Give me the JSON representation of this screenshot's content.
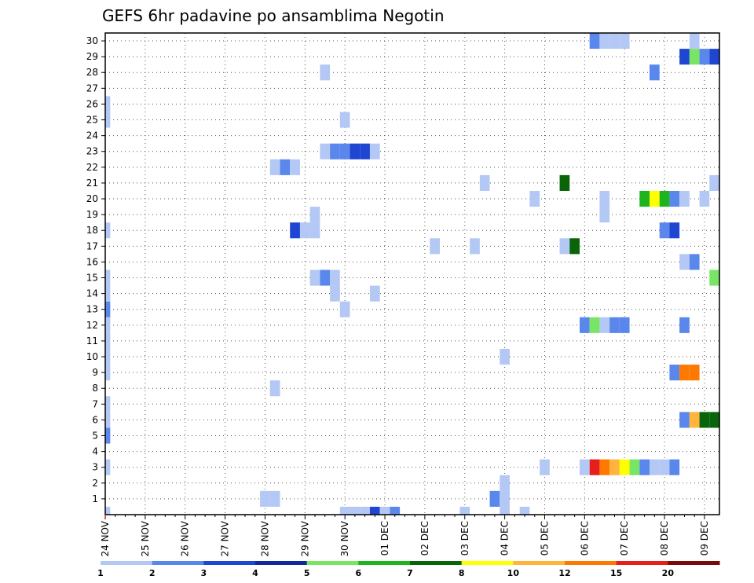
{
  "chart_data": {
    "type": "heatmap",
    "title": "GEFS 6hr padavine po ansamblima Negotin",
    "y_categories": [
      "1",
      "2",
      "3",
      "4",
      "5",
      "6",
      "7",
      "8",
      "9",
      "10",
      "11",
      "12",
      "13",
      "14",
      "15",
      "16",
      "17",
      "18",
      "19",
      "20",
      "21",
      "22",
      "23",
      "24",
      "25",
      "26",
      "27",
      "28",
      "29",
      "30"
    ],
    "x_tick_labels": [
      "24 NOV",
      "25 NOV",
      "26 NOV",
      "27 NOV",
      "28 NOV",
      "29 NOV",
      "30 NOV",
      "01 DEC",
      "02 DEC",
      "03 DEC",
      "04 DEC",
      "05 DEC",
      "06 DEC",
      "07 DEC",
      "08 DEC",
      "09 DEC"
    ],
    "x_steps_per_day": 4,
    "grid": true,
    "colorbar": {
      "boundaries": [
        "1",
        "2",
        "3",
        "4",
        "5",
        "6",
        "7",
        "8",
        "10",
        "12",
        "15",
        "20"
      ],
      "colors": [
        "#b4c8f5",
        "#5a87eb",
        "#1e46d2",
        "#0f28a0",
        "#78e664",
        "#1eb41e",
        "#0a640a",
        "#ffff00",
        "#ffb43c",
        "#ff7800",
        "#e61e1e",
        "#780a0a"
      ]
    },
    "cells": [
      {
        "t": 0,
        "m": 0,
        "c": 0
      },
      {
        "t": 0,
        "m": 3,
        "c": 0
      },
      {
        "t": 0,
        "m": 5,
        "c": 1
      },
      {
        "t": 0,
        "m": 6,
        "c": 0
      },
      {
        "t": 0,
        "m": 7,
        "c": 0
      },
      {
        "t": 0,
        "m": 9,
        "c": 0
      },
      {
        "t": 0,
        "m": 10,
        "c": 0
      },
      {
        "t": 0,
        "m": 11,
        "c": 0
      },
      {
        "t": 0,
        "m": 12,
        "c": 0
      },
      {
        "t": 0,
        "m": 13,
        "c": 1
      },
      {
        "t": 0,
        "m": 14,
        "c": 0
      },
      {
        "t": 0,
        "m": 15,
        "c": 0
      },
      {
        "t": 0,
        "m": 18,
        "c": 0
      },
      {
        "t": 0,
        "m": 25,
        "c": 0
      },
      {
        "t": 0,
        "m": 26,
        "c": 0
      },
      {
        "t": 16,
        "m": 1,
        "c": 0
      },
      {
        "t": 17,
        "m": 1,
        "c": 0
      },
      {
        "t": 17,
        "m": 8,
        "c": 0
      },
      {
        "t": 17,
        "m": 22,
        "c": 0
      },
      {
        "t": 18,
        "m": 22,
        "c": 1
      },
      {
        "t": 19,
        "m": 22,
        "c": 0
      },
      {
        "t": 19,
        "m": 18,
        "c": 2
      },
      {
        "t": 20,
        "m": 18,
        "c": 0
      },
      {
        "t": 21,
        "m": 18,
        "c": 0
      },
      {
        "t": 21,
        "m": 19,
        "c": 0
      },
      {
        "t": 21,
        "m": 15,
        "c": 0
      },
      {
        "t": 22,
        "m": 15,
        "c": 1
      },
      {
        "t": 23,
        "m": 15,
        "c": 0
      },
      {
        "t": 23,
        "m": 14,
        "c": 0
      },
      {
        "t": 22,
        "m": 23,
        "c": 0
      },
      {
        "t": 22,
        "m": 28,
        "c": 0
      },
      {
        "t": 23,
        "m": 23,
        "c": 1
      },
      {
        "t": 24,
        "m": 23,
        "c": 1
      },
      {
        "t": 25,
        "m": 23,
        "c": 2
      },
      {
        "t": 26,
        "m": 23,
        "c": 2
      },
      {
        "t": 27,
        "m": 23,
        "c": 0
      },
      {
        "t": 24,
        "m": 25,
        "c": 0
      },
      {
        "t": 24,
        "m": 13,
        "c": 0
      },
      {
        "t": 24,
        "m": 0,
        "c": 0
      },
      {
        "t": 25,
        "m": 0,
        "c": 0
      },
      {
        "t": 26,
        "m": 0,
        "c": 0
      },
      {
        "t": 27,
        "m": 0,
        "c": 2
      },
      {
        "t": 27,
        "m": 14,
        "c": 0
      },
      {
        "t": 28,
        "m": 0,
        "c": 0
      },
      {
        "t": 29,
        "m": 0,
        "c": 1
      },
      {
        "t": 33,
        "m": 17,
        "c": 0
      },
      {
        "t": 37,
        "m": 17,
        "c": 0
      },
      {
        "t": 36,
        "m": 0,
        "c": 0
      },
      {
        "t": 38,
        "m": 21,
        "c": 0
      },
      {
        "t": 39,
        "m": 1,
        "c": 1
      },
      {
        "t": 40,
        "m": 0,
        "c": 0
      },
      {
        "t": 40,
        "m": 1,
        "c": 0
      },
      {
        "t": 40,
        "m": 2,
        "c": 0
      },
      {
        "t": 40,
        "m": 10,
        "c": 0
      },
      {
        "t": 42,
        "m": 0,
        "c": 0
      },
      {
        "t": 43,
        "m": 20,
        "c": 0
      },
      {
        "t": 44,
        "m": 3,
        "c": 0
      },
      {
        "t": 46,
        "m": 17,
        "c": 0
      },
      {
        "t": 46,
        "m": 21,
        "c": 6
      },
      {
        "t": 47,
        "m": 17,
        "c": 6
      },
      {
        "t": 48,
        "m": 3,
        "c": 0
      },
      {
        "t": 48,
        "m": 12,
        "c": 1
      },
      {
        "t": 49,
        "m": 3,
        "c": 10
      },
      {
        "t": 50,
        "m": 3,
        "c": 9
      },
      {
        "t": 51,
        "m": 3,
        "c": 8
      },
      {
        "t": 52,
        "m": 3,
        "c": 7
      },
      {
        "t": 53,
        "m": 3,
        "c": 4
      },
      {
        "t": 54,
        "m": 3,
        "c": 1
      },
      {
        "t": 55,
        "m": 3,
        "c": 0
      },
      {
        "t": 56,
        "m": 3,
        "c": 0
      },
      {
        "t": 57,
        "m": 3,
        "c": 1
      },
      {
        "t": 49,
        "m": 12,
        "c": 4
      },
      {
        "t": 50,
        "m": 12,
        "c": 0
      },
      {
        "t": 51,
        "m": 12,
        "c": 1
      },
      {
        "t": 52,
        "m": 12,
        "c": 1
      },
      {
        "t": 49,
        "m": 30,
        "c": 1
      },
      {
        "t": 50,
        "m": 30,
        "c": 0
      },
      {
        "t": 51,
        "m": 30,
        "c": 0
      },
      {
        "t": 52,
        "m": 30,
        "c": 0
      },
      {
        "t": 50,
        "m": 19,
        "c": 0
      },
      {
        "t": 50,
        "m": 20,
        "c": 0
      },
      {
        "t": 54,
        "m": 20,
        "c": 5
      },
      {
        "t": 55,
        "m": 20,
        "c": 7
      },
      {
        "t": 56,
        "m": 20,
        "c": 5
      },
      {
        "t": 57,
        "m": 20,
        "c": 1
      },
      {
        "t": 58,
        "m": 20,
        "c": 0
      },
      {
        "t": 60,
        "m": 20,
        "c": 0
      },
      {
        "t": 56,
        "m": 18,
        "c": 1
      },
      {
        "t": 57,
        "m": 18,
        "c": 2
      },
      {
        "t": 55,
        "m": 28,
        "c": 1
      },
      {
        "t": 58,
        "m": 29,
        "c": 2
      },
      {
        "t": 59,
        "m": 29,
        "c": 4
      },
      {
        "t": 60,
        "m": 29,
        "c": 1
      },
      {
        "t": 61,
        "m": 29,
        "c": 2
      },
      {
        "t": 59,
        "m": 30,
        "c": 0
      },
      {
        "t": 58,
        "m": 16,
        "c": 0
      },
      {
        "t": 59,
        "m": 16,
        "c": 1
      },
      {
        "t": 58,
        "m": 12,
        "c": 1
      },
      {
        "t": 57,
        "m": 9,
        "c": 1
      },
      {
        "t": 58,
        "m": 9,
        "c": 9
      },
      {
        "t": 59,
        "m": 9,
        "c": 9
      },
      {
        "t": 58,
        "m": 6,
        "c": 1
      },
      {
        "t": 59,
        "m": 6,
        "c": 8
      },
      {
        "t": 60,
        "m": 6,
        "c": 6
      },
      {
        "t": 61,
        "m": 6,
        "c": 6
      },
      {
        "t": 61,
        "m": 15,
        "c": 4
      },
      {
        "t": 61,
        "m": 21,
        "c": 0
      }
    ]
  }
}
